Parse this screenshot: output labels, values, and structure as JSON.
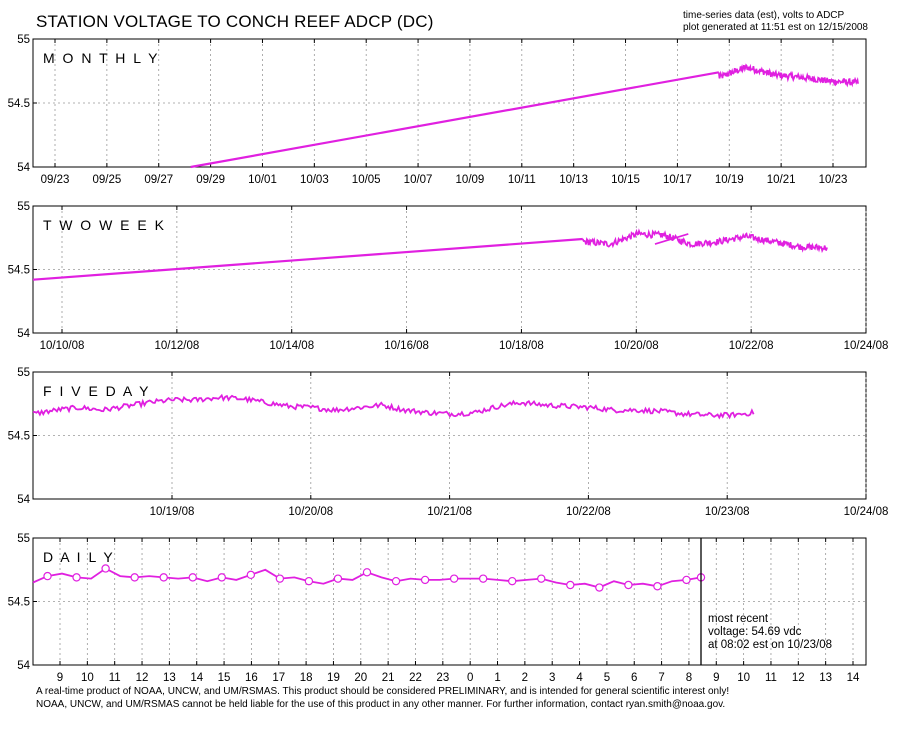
{
  "title": "STATION VOLTAGE TO CONCH REEF ADCP (DC)",
  "meta_lines": [
    "time-series data (est), volts to ADCP",
    "plot generated at 11:51 est on 12/15/2008"
  ],
  "footer_lines": [
    "A real-time product of NOAA, UNCW, and UM/RSMAS. This product should be considered PRELIMINARY, and is intended for general scientific interest only!",
    "NOAA, UNCW, and UM/RSMAS cannot be held liable for the use of this product in any other manner.  For further information, contact ryan.smith@noaa.gov."
  ],
  "colors": {
    "series": "#e020e0",
    "grid": "#999999",
    "axis": "#000000"
  },
  "chart_data": [
    {
      "type": "line",
      "label": "MONTHLY",
      "ylim": [
        54,
        55
      ],
      "yticks": [
        "54",
        "54.5",
        "55"
      ],
      "xlim": [
        -0.5,
        31.2
      ],
      "x_unit": "days since 09/22",
      "xticks": [
        "09/23",
        "09/25",
        "09/27",
        "09/29",
        "10/01",
        "10/03",
        "10/05",
        "10/07",
        "10/09",
        "10/11",
        "10/13",
        "10/15",
        "10/17",
        "10/19",
        "10/21",
        "10/23"
      ],
      "grid": true,
      "series": [
        {
          "x": [
            5.5,
            25.6
          ],
          "y": [
            54.0,
            54.74
          ],
          "noisy_tail": {
            "x_start": 25.6,
            "x_end": 30.9,
            "base": [
              54.7,
              54.78,
              54.72,
              54.7,
              54.67,
              54.66
            ],
            "amp": 0.05
          }
        }
      ]
    },
    {
      "type": "line",
      "label": "TWO WEEK",
      "ylim": [
        54,
        55
      ],
      "yticks": [
        "54",
        "54.5",
        "55"
      ],
      "xlim": [
        0,
        15
      ],
      "xticks": [
        "10/10/08",
        "10/12/08",
        "10/14/08",
        "10/16/08",
        "10/18/08",
        "10/20/08",
        "10/22/08",
        "10/24/08"
      ],
      "grid": true,
      "series": [
        {
          "x": [
            0,
            9.9
          ],
          "y": [
            54.42,
            54.74
          ],
          "gap": {
            "x_from": 11.2,
            "x_to": 11.8,
            "y_from": 54.7,
            "y_to": 54.78
          },
          "noisy_tail": {
            "x_start": 9.9,
            "x_end": 14.3,
            "base": [
              54.72,
              54.7,
              54.78,
              54.77,
              54.7,
              54.72,
              54.76,
              54.72,
              54.68,
              54.67
            ],
            "amp": 0.05
          }
        }
      ]
    },
    {
      "type": "line",
      "label": "FIVE DAY",
      "ylim": [
        54,
        55
      ],
      "yticks": [
        "54",
        "54.5",
        "55"
      ],
      "xlim": [
        0,
        6.3
      ],
      "xticks": [
        "10/19/08",
        "10/20/08",
        "10/21/08",
        "10/22/08",
        "10/23/08",
        "10/24/08"
      ],
      "grid": true,
      "series": [
        {
          "base": [
            54.67,
            54.7,
            54.72,
            54.7,
            54.73,
            54.76,
            54.78,
            54.78,
            54.8,
            54.79,
            54.76,
            54.73,
            54.72,
            54.7,
            54.72,
            54.74,
            54.7,
            54.68,
            54.67,
            54.68,
            54.73,
            54.76,
            54.74,
            54.73,
            54.72,
            54.7,
            54.7,
            54.69,
            54.67,
            54.66,
            54.66,
            54.68
          ],
          "x_start": 0,
          "x_end": 5.45,
          "amp": 0.04
        }
      ]
    },
    {
      "type": "line",
      "label": "DAILY",
      "ylim": [
        54,
        55
      ],
      "yticks": [
        "54",
        "54.5",
        "55"
      ],
      "xlim": [
        0,
        25
      ],
      "xticks": [
        "9",
        "10",
        "11",
        "12",
        "13",
        "14",
        "15",
        "16",
        "17",
        "18",
        "19",
        "20",
        "21",
        "22",
        "23",
        "0",
        "1",
        "2",
        "3",
        "4",
        "5",
        "6",
        "7",
        "8",
        "9",
        "10",
        "11",
        "12",
        "13",
        "14"
      ],
      "xtick_start": 0.7,
      "grid": true,
      "series": [
        {
          "marker": "circle",
          "values": [
            54.65,
            54.7,
            54.72,
            54.69,
            54.68,
            54.76,
            54.7,
            54.69,
            54.7,
            54.69,
            54.68,
            54.69,
            54.66,
            54.69,
            54.67,
            54.71,
            54.75,
            54.68,
            54.69,
            54.66,
            54.64,
            54.68,
            54.67,
            54.73,
            54.69,
            54.66,
            54.68,
            54.67,
            54.67,
            54.68,
            54.68,
            54.68,
            54.67,
            54.66,
            54.67,
            54.68,
            54.65,
            54.63,
            54.64,
            54.61,
            54.66,
            54.63,
            54.64,
            54.62,
            54.66,
            54.67,
            54.69
          ]
        }
      ],
      "marker_line": "8",
      "annotation": [
        "most recent",
        "voltage: 54.69 vdc",
        "at 08:02 est on 10/23/08"
      ]
    }
  ]
}
